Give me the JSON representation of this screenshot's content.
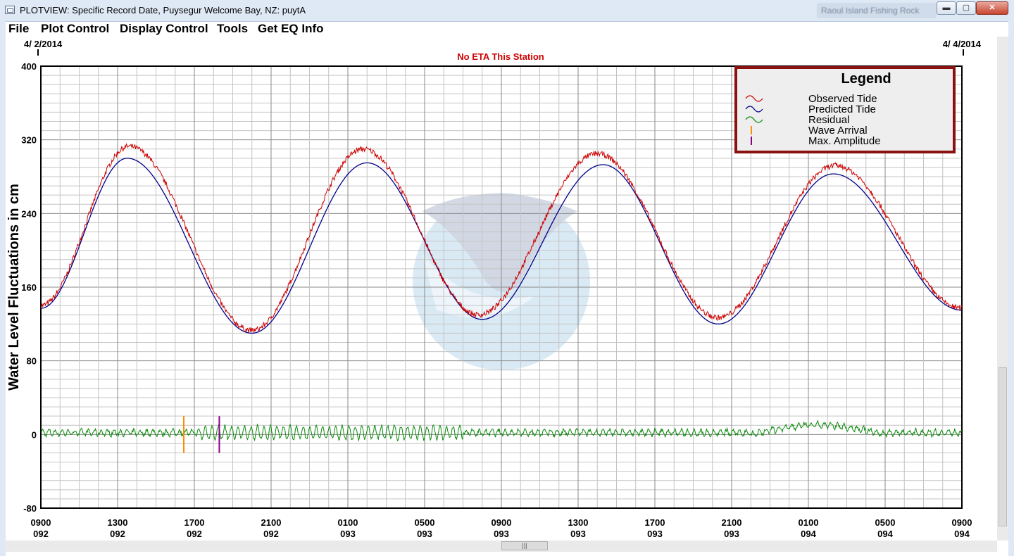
{
  "window": {
    "title": "PLOTVIEW: Specific Record Date, Puysegur Welcome Bay, NZ: puytA",
    "background_title": "Raoul Island Fishing Rock",
    "minimize": "▬",
    "maximize": "▢",
    "close": "✕"
  },
  "menu": [
    "File",
    "Plot Control",
    "Display Control",
    "Tools",
    "Get EQ Info"
  ],
  "scrollbar": {
    "thumb_grip": "|||"
  },
  "colors": {
    "observed": "#cc0000",
    "predicted": "#00008b",
    "residual": "#0a8a0a",
    "wave_arrival": "#ff8c00",
    "max_amplitude": "#8b008b",
    "legend_border": "#8b1010",
    "eta_text": "#cc0000"
  },
  "chart_data": {
    "type": "line",
    "title": "No ETA This Station",
    "ylabel": "Water Level Fluctuations in cm",
    "start_date": "4/ 2/2014",
    "end_date": "4/ 4/2014",
    "x_range_hours": [
      0,
      48
    ],
    "ylim": [
      -80,
      400
    ],
    "y_ticks": [
      -80,
      0,
      80,
      160,
      240,
      320,
      400
    ],
    "x_ticks": [
      {
        "h": 0,
        "time": "0900",
        "day": "092"
      },
      {
        "h": 4,
        "time": "1300",
        "day": "092"
      },
      {
        "h": 8,
        "time": "1700",
        "day": "092"
      },
      {
        "h": 12,
        "time": "2100",
        "day": "092"
      },
      {
        "h": 16,
        "time": "0100",
        "day": "093"
      },
      {
        "h": 20,
        "time": "0500",
        "day": "093"
      },
      {
        "h": 24,
        "time": "0900",
        "day": "093"
      },
      {
        "h": 28,
        "time": "1300",
        "day": "093"
      },
      {
        "h": 32,
        "time": "1700",
        "day": "093"
      },
      {
        "h": 36,
        "time": "2100",
        "day": "093"
      },
      {
        "h": 40,
        "time": "0100",
        "day": "094"
      },
      {
        "h": 44,
        "time": "0500",
        "day": "094"
      },
      {
        "h": 48,
        "time": "0900",
        "day": "094"
      }
    ],
    "grid": true,
    "legend_position": "top-right",
    "legend_title": "Legend",
    "legend": [
      {
        "label": "Observed Tide",
        "series": "observed"
      },
      {
        "label": "Predicted Tide",
        "series": "predicted"
      },
      {
        "label": "Residual",
        "series": "residual"
      },
      {
        "label": "Wave Arrival",
        "series": "wave_arrival"
      },
      {
        "label": "Max. Amplitude",
        "series": "max_amplitude"
      }
    ],
    "predicted_extrema": [
      {
        "h": 0,
        "v": 137
      },
      {
        "h": 4.5,
        "v": 300
      },
      {
        "h": 11,
        "v": 110
      },
      {
        "h": 17,
        "v": 295
      },
      {
        "h": 23,
        "v": 125
      },
      {
        "h": 29.3,
        "v": 293
      },
      {
        "h": 35.3,
        "v": 120
      },
      {
        "h": 41.3,
        "v": 283
      },
      {
        "h": 48,
        "v": 135
      }
    ],
    "observed_extrema": [
      {
        "h": 0,
        "v": 140
      },
      {
        "h": 4.6,
        "v": 313
      },
      {
        "h": 11,
        "v": 113
      },
      {
        "h": 16.8,
        "v": 310
      },
      {
        "h": 22.8,
        "v": 130
      },
      {
        "h": 29,
        "v": 305
      },
      {
        "h": 35.3,
        "v": 127
      },
      {
        "h": 41.4,
        "v": 292
      },
      {
        "h": 48,
        "v": 137
      }
    ],
    "wave_arrival_h": 7.45,
    "max_amplitude_h": 9.3,
    "residual_range": [
      -8,
      15
    ],
    "watermark": "National Oceanic and Atmospheric Administration - West Coast and Alaska Tsunami Warning Center"
  }
}
